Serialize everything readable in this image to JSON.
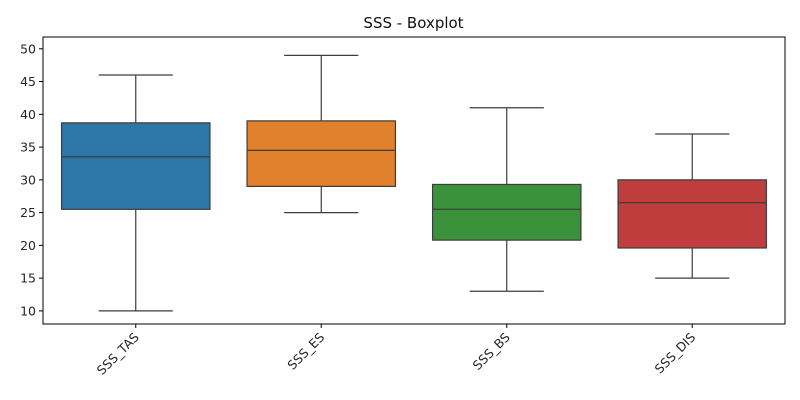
{
  "chart_data": {
    "type": "boxplot",
    "title": "SSS - Boxplot",
    "xlabel": "",
    "ylabel": "",
    "categories": [
      "SSS_TAS",
      "SSS_ES",
      "SSS_BS",
      "SSS_DIS"
    ],
    "colors": [
      "#2e75a8",
      "#e1812c",
      "#3a923a",
      "#c03d3e"
    ],
    "boxes": [
      {
        "name": "SSS_TAS",
        "whisker_low": 10,
        "q1": 25.5,
        "median": 33.5,
        "q3": 38.7,
        "whisker_high": 46
      },
      {
        "name": "SSS_ES",
        "whisker_low": 25,
        "q1": 29,
        "median": 34.5,
        "q3": 39,
        "whisker_high": 49
      },
      {
        "name": "SSS_BS",
        "whisker_low": 13,
        "q1": 20.8,
        "median": 25.5,
        "q3": 29.3,
        "whisker_high": 41
      },
      {
        "name": "SSS_DIS",
        "whisker_low": 15,
        "q1": 19.6,
        "median": 26.5,
        "q3": 30,
        "whisker_high": 37
      }
    ],
    "yticks": [
      10,
      15,
      20,
      25,
      30,
      35,
      40,
      45,
      50
    ],
    "ylim": [
      8,
      51.8
    ],
    "grid": false,
    "xtick_rotation": 45
  }
}
